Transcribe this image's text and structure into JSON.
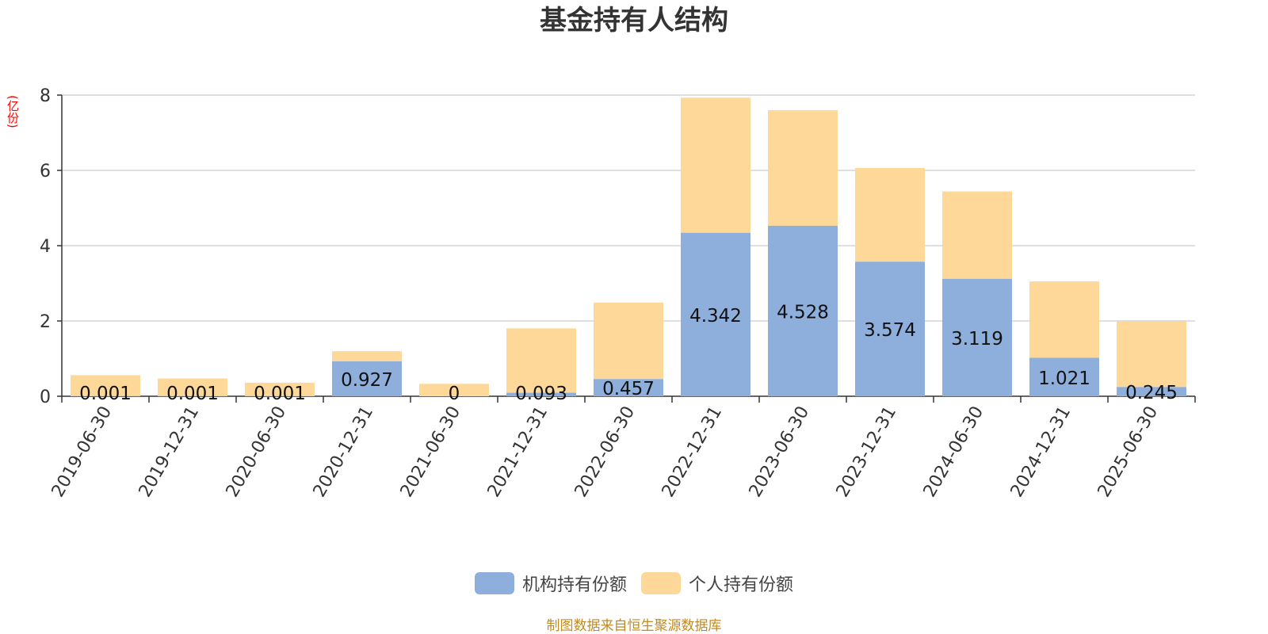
{
  "title": "基金持有人结构",
  "unit_label": "(亿份)",
  "source": "制图数据来自恒生聚源数据库",
  "colors": {
    "institution": "#8eaedb",
    "individual": "#fed898"
  },
  "chart_data": {
    "type": "bar",
    "stacked": true,
    "categories": [
      "2019-06-30",
      "2019-12-31",
      "2020-06-30",
      "2020-12-31",
      "2021-06-30",
      "2021-12-31",
      "2022-06-30",
      "2022-12-31",
      "2023-06-30",
      "2023-12-31",
      "2024-06-30",
      "2024-12-31",
      "2025-06-30"
    ],
    "series": [
      {
        "name": "机构持有份额",
        "values": [
          0.001,
          0.001,
          0.001,
          0.927,
          0,
          0.093,
          0.457,
          4.342,
          4.528,
          3.574,
          3.119,
          1.021,
          0.245
        ],
        "labels": [
          "0.001",
          "0.001",
          "0.001",
          "0.927",
          "0",
          "0.093",
          "0.457",
          "4.342",
          "4.528",
          "3.574",
          "3.119",
          "1.021",
          "0.245"
        ]
      },
      {
        "name": "个人持有份额",
        "values": [
          0.56,
          0.47,
          0.36,
          0.27,
          0.33,
          1.71,
          2.03,
          3.59,
          3.07,
          2.49,
          2.32,
          2.03,
          1.74
        ]
      }
    ],
    "ylim": [
      0,
      8
    ],
    "yticks": [
      0,
      2,
      4,
      6,
      8
    ],
    "grid": true,
    "legend": "bottom-center"
  }
}
